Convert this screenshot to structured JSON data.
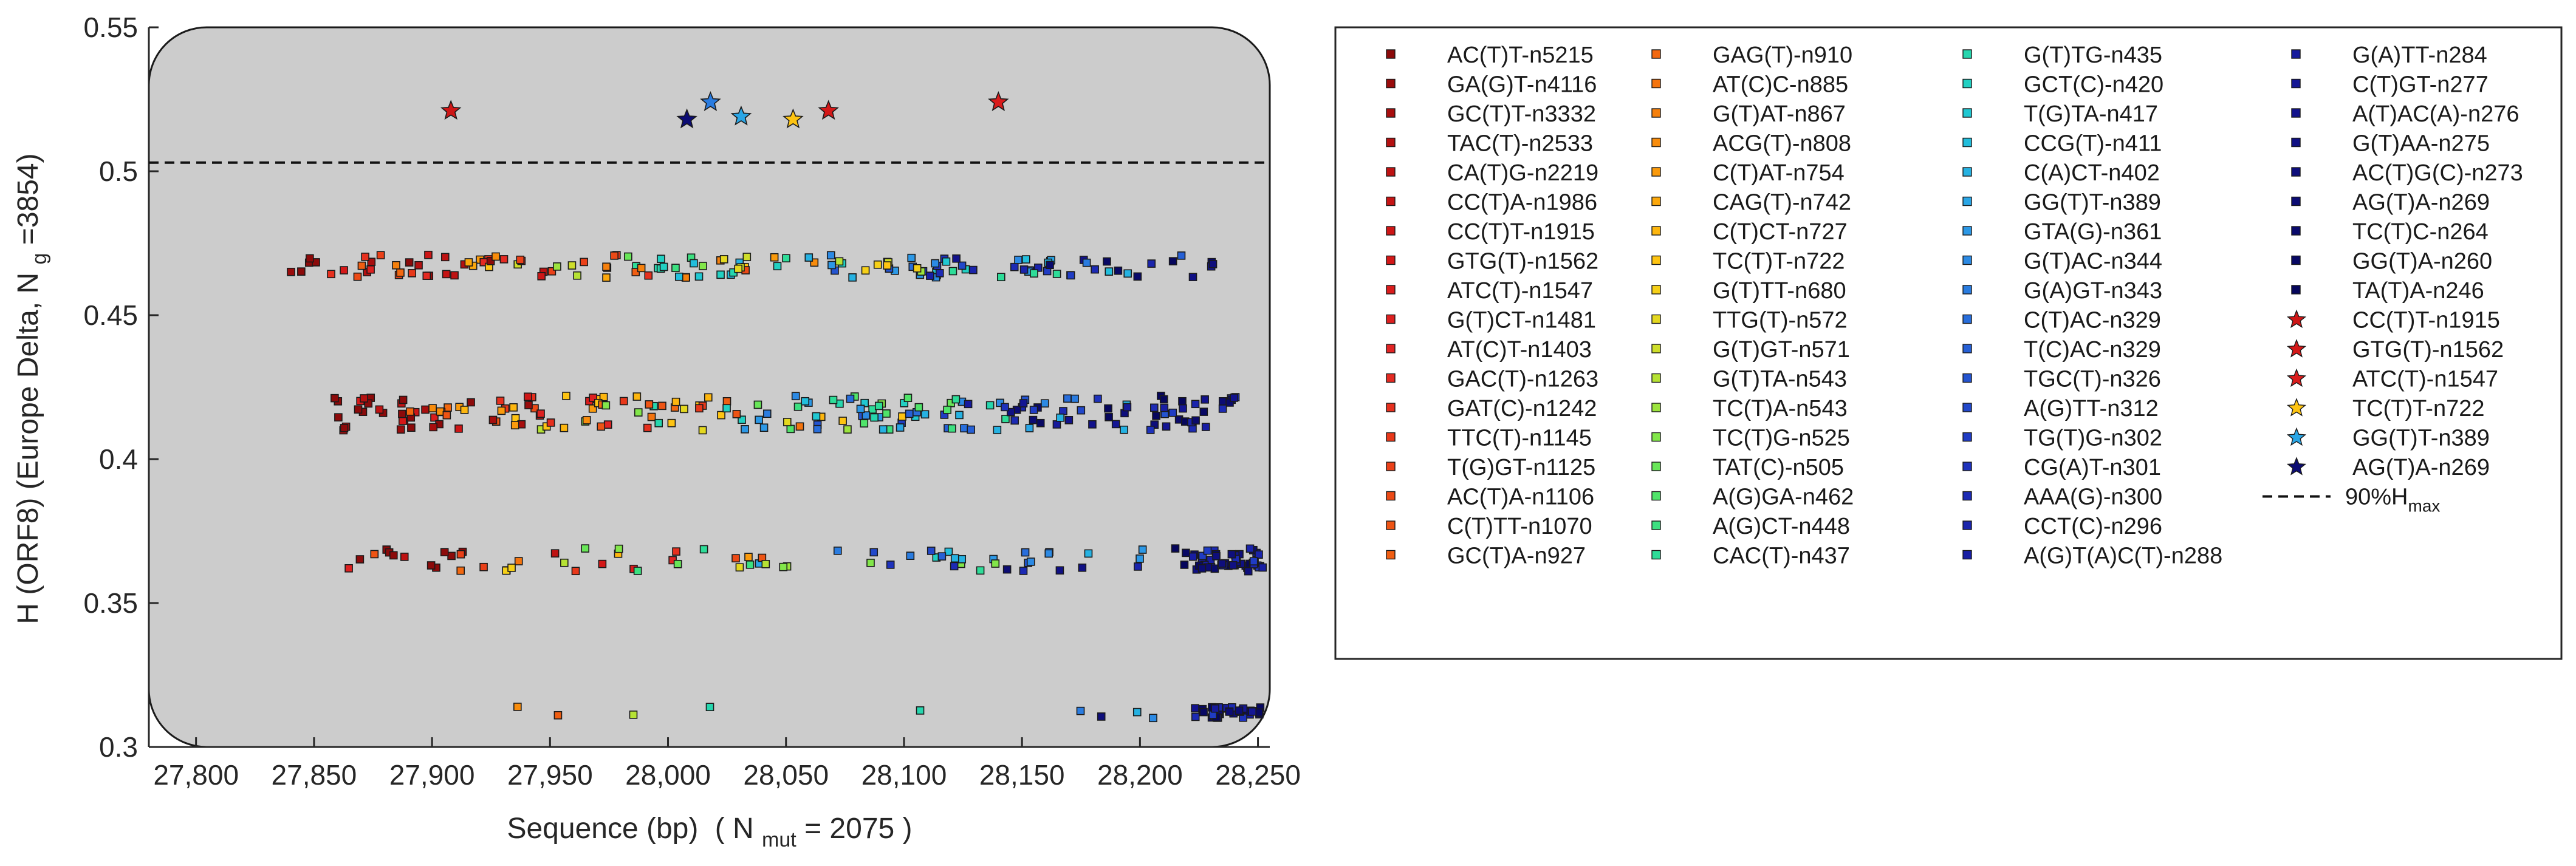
{
  "chart_data": {
    "type": "scatter",
    "title": "",
    "xlabel": "Sequence (bp)",
    "xlabel_suffix": "( N",
    "xlabel_sub": "mut",
    "xlabel_tail": "= 2075 )",
    "ylabel": "H (ORF8) (Europe Delta, N",
    "ylabel_sub": "g",
    "ylabel_tail": "=3854)",
    "xlim": [
      27780,
      28255
    ],
    "ylim": [
      0.3,
      0.55
    ],
    "xticks": [
      27800,
      27850,
      27900,
      27950,
      28000,
      28050,
      28100,
      28150,
      28200,
      28250
    ],
    "xtick_labels": [
      "27,800",
      "27,850",
      "27,900",
      "27,950",
      "28,000",
      "28,050",
      "28,100",
      "28,150",
      "28,200",
      "28,250"
    ],
    "yticks": [
      0.3,
      0.35,
      0.4,
      0.45,
      0.5,
      0.55
    ],
    "ytick_labels": [
      "0.3",
      "0.35",
      "0.4",
      "0.45",
      "0.5",
      "0.55"
    ],
    "threshold": {
      "label": "90%H",
      "label_sub": "max",
      "value": 0.503
    },
    "grid": false,
    "legend_position": "right",
    "square_series": [
      {
        "name": "AC(T)T-n5215",
        "color": "#8c0a0a"
      },
      {
        "name": "GA(G)T-n4116",
        "color": "#9a0c0c"
      },
      {
        "name": "GC(T)T-n3332",
        "color": "#a80e0e"
      },
      {
        "name": "TAC(T)-n2533",
        "color": "#b41010"
      },
      {
        "name": "CA(T)G-n2219",
        "color": "#be1212"
      },
      {
        "name": "CC(T)A-n1986",
        "color": "#c61414"
      },
      {
        "name": "CC(T)T-n1915",
        "color": "#ce1616"
      },
      {
        "name": "GTG(T)-n1562",
        "color": "#d41818"
      },
      {
        "name": "ATC(T)-n1547",
        "color": "#da1c1c"
      },
      {
        "name": "G(T)CT-n1481",
        "color": "#de2020"
      },
      {
        "name": "AT(C)T-n1403",
        "color": "#e22424"
      },
      {
        "name": "GAC(T)-n1263",
        "color": "#e42a22"
      },
      {
        "name": "GAT(C)-n1242",
        "color": "#e6301e"
      },
      {
        "name": "TTC(T)-n1145",
        "color": "#e8381a"
      },
      {
        "name": "T(G)GT-n1125",
        "color": "#ea4018"
      },
      {
        "name": "AC(T)A-n1106",
        "color": "#ec4a16"
      },
      {
        "name": "C(T)TT-n1070",
        "color": "#ee5414"
      },
      {
        "name": "GC(T)A-n927",
        "color": "#f05e12"
      },
      {
        "name": "GAG(T)-n910",
        "color": "#f26810"
      },
      {
        "name": "AT(C)C-n885",
        "color": "#f4740e"
      },
      {
        "name": "G(T)AT-n867",
        "color": "#f6800c"
      },
      {
        "name": "ACG(T)-n808",
        "color": "#f88c0c"
      },
      {
        "name": "C(T)AT-n754",
        "color": "#fa9a0c"
      },
      {
        "name": "CAG(T)-n742",
        "color": "#fca80c"
      },
      {
        "name": "C(T)CT-n727",
        "color": "#fdb60e"
      },
      {
        "name": "TC(T)T-n722",
        "color": "#fec412"
      },
      {
        "name": "G(T)TT-n680",
        "color": "#f6d018"
      },
      {
        "name": "TTG(T)-n572",
        "color": "#e4d820"
      },
      {
        "name": "G(T)GT-n571",
        "color": "#cede2a"
      },
      {
        "name": "G(T)TA-n543",
        "color": "#b6e234"
      },
      {
        "name": "TC(T)A-n543",
        "color": "#9ce43e"
      },
      {
        "name": "TC(T)G-n525",
        "color": "#82e64a"
      },
      {
        "name": "TAT(C)-n505",
        "color": "#68e658"
      },
      {
        "name": "A(G)GA-n462",
        "color": "#50e46a"
      },
      {
        "name": "A(G)CT-n448",
        "color": "#3ce080"
      },
      {
        "name": "CAC(T)-n437",
        "color": "#2edc98"
      },
      {
        "name": "G(T)TG-n435",
        "color": "#26d6ae"
      },
      {
        "name": "GCT(C)-n420",
        "color": "#22d0c2"
      },
      {
        "name": "T(G)TA-n417",
        "color": "#20c8d2"
      },
      {
        "name": "CCG(T)-n411",
        "color": "#22bedc"
      },
      {
        "name": "C(A)CT-n402",
        "color": "#26b2e2"
      },
      {
        "name": "GG(T)T-n389",
        "color": "#2aa6e6"
      },
      {
        "name": "GTA(G)-n361",
        "color": "#2c98e6"
      },
      {
        "name": "G(T)AC-n344",
        "color": "#2c8ae4"
      },
      {
        "name": "G(A)GT-n343",
        "color": "#2a7ce0"
      },
      {
        "name": "C(T)AC-n329",
        "color": "#286edc"
      },
      {
        "name": "T(C)AC-n329",
        "color": "#2660d6"
      },
      {
        "name": "TGC(T)-n326",
        "color": "#2454d0"
      },
      {
        "name": "A(G)TT-n312",
        "color": "#2248ca"
      },
      {
        "name": "TG(T)G-n302",
        "color": "#203cc4"
      },
      {
        "name": "CG(A)T-n301",
        "color": "#1e32bc"
      },
      {
        "name": "AAA(G)-n300",
        "color": "#1c2ab4"
      },
      {
        "name": "CCT(C)-n296",
        "color": "#1a24ac"
      },
      {
        "name": "A(G)T(A)C(T)-n288",
        "color": "#181ea4"
      },
      {
        "name": "G(A)TT-n284",
        "color": "#161a9c"
      },
      {
        "name": "C(T)GT-n277",
        "color": "#141694"
      },
      {
        "name": "A(T)AC(A)-n276",
        "color": "#12128c"
      },
      {
        "name": "G(T)AA-n275",
        "color": "#101084"
      },
      {
        "name": "AC(T)G(C)-n273",
        "color": "#0e0e7c"
      },
      {
        "name": "AG(T)A-n269",
        "color": "#0c0c74"
      },
      {
        "name": "TC(T)C-n264",
        "color": "#0a0a6c"
      },
      {
        "name": "GG(T)A-n260",
        "color": "#080864"
      },
      {
        "name": "TA(T)A-n246",
        "color": "#06065c"
      }
    ],
    "star_series": [
      {
        "name": "CC(T)T-n1915",
        "color": "#ce1616",
        "x": 27908,
        "y": 0.521
      },
      {
        "name": "GTG(T)-n1562",
        "color": "#d41818",
        "x": 28068,
        "y": 0.521
      },
      {
        "name": "ATC(T)-n1547",
        "color": "#da1c1c",
        "x": 28140,
        "y": 0.524
      },
      {
        "name": "TC(T)T-n722",
        "color": "#fec412",
        "x": 28053,
        "y": 0.518
      },
      {
        "name": "GG(T)T-n389",
        "color": "#2aa6e6",
        "x": 28031,
        "y": 0.519
      },
      {
        "name": "AG(T)A-n269",
        "color": "#0c0c74",
        "x": 28008,
        "y": 0.518
      }
    ],
    "extra_stars": [
      {
        "color": "#2a7ce0",
        "x": 28018,
        "y": 0.524
      }
    ],
    "point_clusters": [
      {
        "y": 0.467,
        "x_from": 27838,
        "x_to": 28232,
        "spread": 0.004
      },
      {
        "y": 0.416,
        "x_from": 27858,
        "x_to": 28252,
        "spread": 0.006
      },
      {
        "y": 0.365,
        "x_from": 27858,
        "x_to": 28252,
        "spread": 0.004
      },
      {
        "y": 0.312,
        "x_from": 27920,
        "x_to": 28252,
        "spread": 0.002
      }
    ]
  }
}
